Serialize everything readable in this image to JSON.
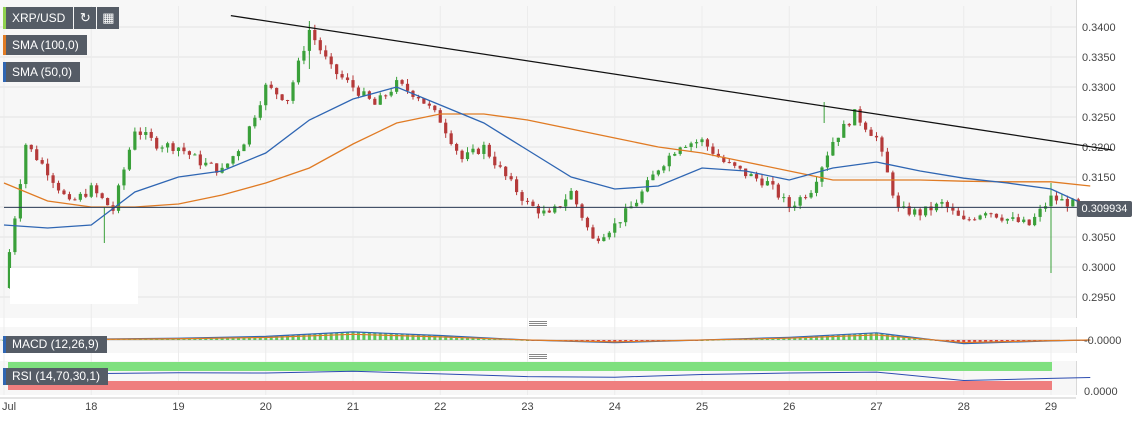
{
  "toolbar": {
    "symbol": "XRP/USD"
  },
  "legends": {
    "sma100": "SMA (100,0)",
    "sma50": "SMA (50,0)",
    "macd": "MACD (12,26,9)",
    "rsi": "RSI (14,70,30,1)"
  },
  "current_price": "0.309934",
  "macd_axis_label": "-0.0000",
  "rsi_axis_label": "0.0000",
  "colors": {
    "bull": "#3aa03a",
    "bear": "#b53a3a",
    "sma100": "#e07b24",
    "sma50": "#2f66b3",
    "trendline": "#111111",
    "price_line": "#2b3a55"
  },
  "chart_data": {
    "type": "candlestick",
    "title": "XRP/USD",
    "ylim": [
      0.2915,
      0.3435
    ],
    "y_ticks": [
      "0.2950",
      "0.3000",
      "0.3050",
      "0.3100",
      "0.3150",
      "0.3200",
      "0.3250",
      "0.3300",
      "0.3350",
      "0.3400"
    ],
    "x_ticks": [
      "Jul",
      "18",
      "19",
      "20",
      "21",
      "22",
      "23",
      "24",
      "25",
      "26",
      "27",
      "28",
      "29"
    ],
    "series": [
      {
        "name": "XRP/USD",
        "kind": "close",
        "x": [
          0,
          0.25,
          0.5,
          0.75,
          1,
          1.25,
          1.5,
          1.75,
          2,
          2.25,
          2.5,
          2.75,
          3,
          3.25,
          3.5,
          3.75,
          4,
          4.25,
          4.5,
          4.75,
          5,
          5.25,
          5.5,
          5.75,
          6,
          6.25,
          6.5,
          6.75,
          7,
          7.25,
          7.5,
          7.75,
          8,
          8.25,
          8.5,
          8.75,
          9,
          9.25,
          9.5,
          9.75,
          10,
          10.25,
          10.5,
          10.75,
          11,
          11.25,
          11.5,
          11.75,
          12,
          12.25,
          12.45
        ],
        "values": [
          0.2965,
          0.3205,
          0.316,
          0.3105,
          0.313,
          0.3095,
          0.323,
          0.3205,
          0.32,
          0.3175,
          0.316,
          0.321,
          0.33,
          0.328,
          0.3395,
          0.333,
          0.33,
          0.327,
          0.3305,
          0.3285,
          0.3245,
          0.318,
          0.32,
          0.315,
          0.3105,
          0.3085,
          0.3125,
          0.3045,
          0.307,
          0.311,
          0.3165,
          0.3205,
          0.321,
          0.3175,
          0.3155,
          0.314,
          0.31,
          0.313,
          0.321,
          0.3255,
          0.3215,
          0.3095,
          0.309,
          0.3105,
          0.3075,
          0.3095,
          0.308,
          0.307,
          0.3115,
          0.3105,
          0.3099
        ]
      },
      {
        "name": "SMA (100,0)",
        "x": [
          0,
          0.5,
          1,
          1.5,
          2,
          2.5,
          3,
          3.5,
          4,
          4.5,
          5,
          5.5,
          6,
          6.5,
          7,
          7.5,
          8,
          8.5,
          9,
          9.5,
          10,
          10.5,
          11,
          11.5,
          12,
          12.45
        ],
        "values": [
          0.314,
          0.311,
          0.31,
          0.31,
          0.3105,
          0.312,
          0.314,
          0.3165,
          0.3205,
          0.324,
          0.3255,
          0.3255,
          0.3245,
          0.323,
          0.3215,
          0.32,
          0.319,
          0.3175,
          0.316,
          0.3145,
          0.3145,
          0.3145,
          0.3143,
          0.3142,
          0.3142,
          0.3135
        ]
      },
      {
        "name": "SMA (50,0)",
        "x": [
          0,
          0.5,
          1,
          1.5,
          2,
          2.5,
          3,
          3.5,
          4,
          4.5,
          5,
          5.5,
          6,
          6.5,
          7,
          7.5,
          8,
          8.5,
          9,
          9.5,
          10,
          10.5,
          11,
          11.5,
          12,
          12.45
        ],
        "values": [
          0.307,
          0.3065,
          0.307,
          0.3125,
          0.315,
          0.316,
          0.319,
          0.3245,
          0.328,
          0.33,
          0.327,
          0.324,
          0.3195,
          0.315,
          0.313,
          0.3135,
          0.3165,
          0.316,
          0.3145,
          0.3165,
          0.3175,
          0.316,
          0.3148,
          0.314,
          0.313,
          0.31
        ]
      },
      {
        "name": "trendline",
        "x": [
          2.6,
          12.7
        ],
        "values": [
          0.3419,
          0.3195
        ]
      },
      {
        "name": "current price",
        "x": [
          0,
          12.7
        ],
        "values": [
          0.309934,
          0.309934
        ]
      }
    ],
    "macd": {
      "name": "MACD (12,26,9)",
      "x": [
        0,
        1,
        2,
        3,
        4,
        5,
        6,
        7,
        8,
        9,
        10,
        11,
        12,
        12.45
      ],
      "values": [
        0.0,
        0.0001,
        0.0002,
        0.0004,
        0.0009,
        0.0005,
        0.0,
        -0.0003,
        0.0,
        0.0003,
        0.0008,
        -0.0004,
        -0.0001,
        0.0
      ]
    },
    "rsi": {
      "name": "RSI (14,70,30,1)",
      "x": [
        0,
        1,
        2,
        3,
        4,
        5,
        6,
        7,
        8,
        9,
        10,
        11,
        12,
        12.45
      ],
      "values": [
        62,
        58,
        61,
        60,
        66,
        57,
        48,
        46,
        55,
        60,
        63,
        35,
        42,
        45
      ]
    }
  }
}
